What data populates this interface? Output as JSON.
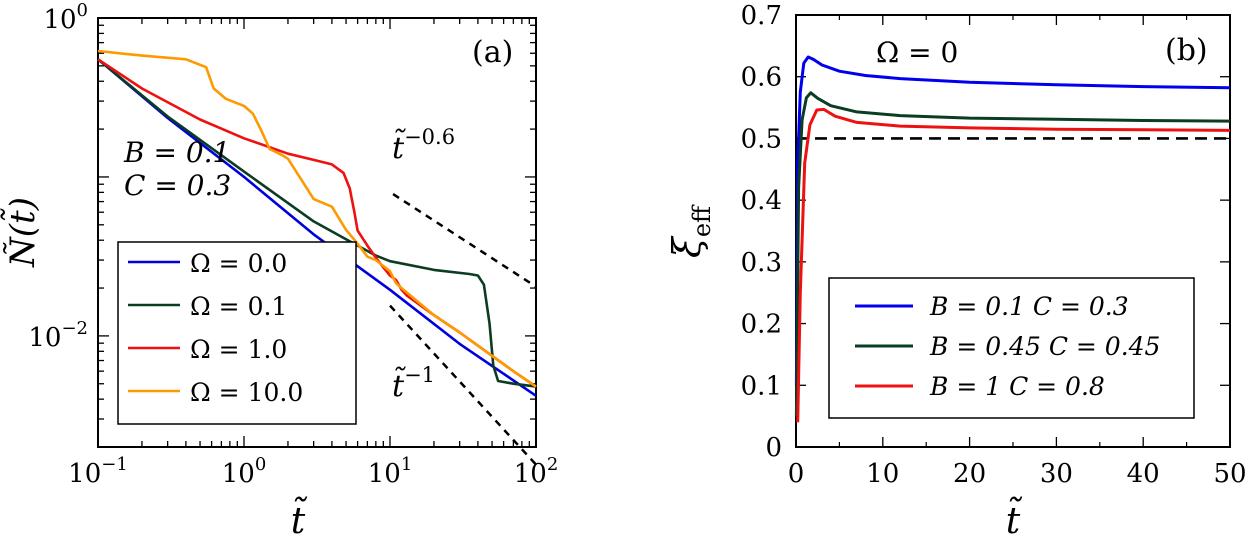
{
  "chart_data": [
    {
      "type": "line",
      "panel_label": "(a)",
      "xlabel": "t̃",
      "ylabel": "Ñ(t̃)",
      "xscale": "log",
      "yscale": "log",
      "xlim": [
        0.1,
        100
      ],
      "ylim": [
        0.002,
        1
      ],
      "x_ticks": [
        {
          "value": 0.1,
          "base": "10",
          "exp": "−1"
        },
        {
          "value": 1,
          "base": "10",
          "exp": "0"
        },
        {
          "value": 10,
          "base": "10",
          "exp": "1"
        },
        {
          "value": 100,
          "base": "10",
          "exp": "2"
        }
      ],
      "y_ticks": [
        {
          "value": 0.01,
          "base": "10",
          "exp": "−2"
        },
        {
          "value": 1,
          "base": "10",
          "exp": "0"
        }
      ],
      "params": [
        "B = 0.1",
        "C = 0.3"
      ],
      "legend_position": "bottom-left",
      "series": [
        {
          "name": "Ω = 0.0",
          "color": "#0000dd",
          "points": [
            [
              0.1,
              0.55
            ],
            [
              0.3,
              0.235
            ],
            [
              1,
              0.1
            ],
            [
              3,
              0.0435
            ],
            [
              10,
              0.0195
            ],
            [
              30,
              0.0089
            ],
            [
              100,
              0.0042
            ]
          ]
        },
        {
          "name": "Ω = 0.1",
          "color": "#0a3d22",
          "points": [
            [
              0.1,
              0.55
            ],
            [
              0.3,
              0.24
            ],
            [
              1,
              0.108
            ],
            [
              3,
              0.0525
            ],
            [
              5,
              0.0405
            ],
            [
              8,
              0.032
            ],
            [
              10,
              0.0295
            ],
            [
              20,
              0.026
            ],
            [
              35,
              0.0245
            ],
            [
              40,
              0.024
            ],
            [
              44,
              0.021
            ],
            [
              48,
              0.012
            ],
            [
              51,
              0.0065
            ],
            [
              55,
              0.0052
            ],
            [
              70,
              0.005
            ],
            [
              100,
              0.0048
            ]
          ]
        },
        {
          "name": "Ω = 1.0",
          "color": "#ee1111",
          "points": [
            [
              0.1,
              0.55
            ],
            [
              0.2,
              0.36
            ],
            [
              0.5,
              0.23
            ],
            [
              1,
              0.175
            ],
            [
              2,
              0.14
            ],
            [
              3,
              0.128
            ],
            [
              4,
              0.12
            ],
            [
              4.8,
              0.106
            ],
            [
              5.3,
              0.085
            ],
            [
              5.7,
              0.06
            ],
            [
              6,
              0.046
            ],
            [
              7,
              0.037
            ],
            [
              8,
              0.031
            ],
            [
              9,
              0.027
            ],
            [
              10,
              0.024
            ],
            [
              11,
              0.0225
            ],
            [
              12,
              0.0195
            ],
            [
              13,
              0.018
            ],
            [
              20,
              0.0135
            ],
            [
              30,
              0.0105
            ],
            [
              50,
              0.0075
            ],
            [
              70,
              0.006
            ],
            [
              100,
              0.0048
            ]
          ]
        },
        {
          "name": "Ω = 10.0",
          "color": "#ff9900",
          "points": [
            [
              0.1,
              0.62
            ],
            [
              0.2,
              0.58
            ],
            [
              0.4,
              0.55
            ],
            [
              0.55,
              0.49
            ],
            [
              0.62,
              0.36
            ],
            [
              0.75,
              0.31
            ],
            [
              1,
              0.28
            ],
            [
              1.15,
              0.25
            ],
            [
              1.3,
              0.2
            ],
            [
              1.5,
              0.15
            ],
            [
              1.8,
              0.138
            ],
            [
              2,
              0.13
            ],
            [
              3,
              0.0725
            ],
            [
              4,
              0.065
            ],
            [
              5,
              0.0465
            ],
            [
              6,
              0.038
            ],
            [
              7,
              0.0315
            ],
            [
              8,
              0.03
            ],
            [
              10,
              0.0255
            ],
            [
              11,
              0.0215
            ],
            [
              12,
              0.02
            ],
            [
              20,
              0.0135
            ],
            [
              30,
              0.0105
            ],
            [
              50,
              0.0075
            ],
            [
              70,
              0.006
            ],
            [
              100,
              0.0048
            ]
          ]
        }
      ],
      "annotations": [
        {
          "base": "t̃",
          "exp": "−0.6",
          "slope": -0.6,
          "from": [
            10.5,
            0.078
          ],
          "to": [
            100,
            0.0204
          ]
        },
        {
          "base": "t̃",
          "exp": "−1",
          "slope": -1,
          "from": [
            10,
            0.0155
          ],
          "to": [
            100,
            0.00155
          ]
        }
      ]
    },
    {
      "type": "line",
      "panel_label": "(b)",
      "xlabel": "t̃",
      "ylabel": "ξ",
      "ylabel_sub": "eff",
      "xlim": [
        0,
        50
      ],
      "ylim": [
        0,
        0.7
      ],
      "x_ticks": [
        "0",
        "10",
        "20",
        "30",
        "40",
        "50"
      ],
      "y_ticks": [
        "0",
        "0.1",
        "0.2",
        "0.3",
        "0.4",
        "0.5",
        "0.6",
        "0.7"
      ],
      "header": "Ω = 0",
      "legend_position": "bottom-right",
      "reference_line": {
        "y": 0.5,
        "style": "dashed"
      },
      "series": [
        {
          "name": "B = 0.1 C = 0.3",
          "color": "#0000ee",
          "points": [
            [
              0.05,
              0.1
            ],
            [
              0.2,
              0.46
            ],
            [
              0.5,
              0.575
            ],
            [
              0.9,
              0.622
            ],
            [
              1.4,
              0.632
            ],
            [
              2,
              0.628
            ],
            [
              3,
              0.619
            ],
            [
              5,
              0.609
            ],
            [
              8,
              0.602
            ],
            [
              12,
              0.597
            ],
            [
              20,
              0.591
            ],
            [
              30,
              0.587
            ],
            [
              40,
              0.584
            ],
            [
              50,
              0.582
            ]
          ]
        },
        {
          "name": "B = 0.45 C = 0.45",
          "color": "#0a3d22",
          "points": [
            [
              0.05,
              0.05
            ],
            [
              0.3,
              0.42
            ],
            [
              0.7,
              0.53
            ],
            [
              1.2,
              0.566
            ],
            [
              1.7,
              0.574
            ],
            [
              2.5,
              0.565
            ],
            [
              4,
              0.553
            ],
            [
              7,
              0.543
            ],
            [
              12,
              0.537
            ],
            [
              20,
              0.533
            ],
            [
              30,
              0.531
            ],
            [
              40,
              0.529
            ],
            [
              50,
              0.528
            ]
          ]
        },
        {
          "name": "B = 1 C = 0.8",
          "color": "#ee1111",
          "points": [
            [
              0.2,
              0.04
            ],
            [
              0.5,
              0.25
            ],
            [
              1,
              0.46
            ],
            [
              1.6,
              0.522
            ],
            [
              2.4,
              0.546
            ],
            [
              3.2,
              0.547
            ],
            [
              4.5,
              0.536
            ],
            [
              7,
              0.526
            ],
            [
              12,
              0.52
            ],
            [
              20,
              0.517
            ],
            [
              30,
              0.515
            ],
            [
              40,
              0.514
            ],
            [
              50,
              0.513
            ]
          ]
        }
      ]
    }
  ]
}
